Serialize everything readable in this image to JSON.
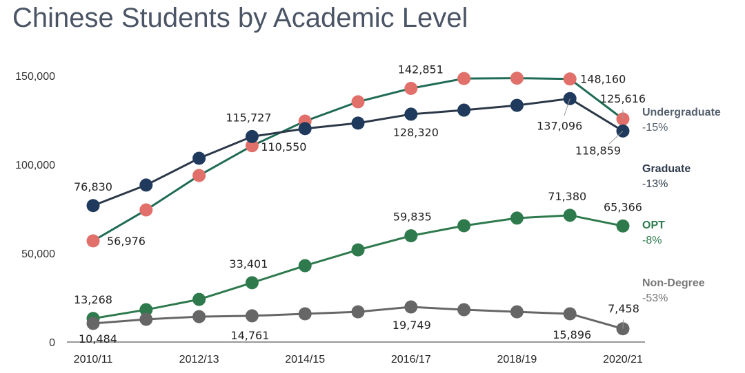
{
  "chart_data": {
    "type": "line",
    "title": "Chinese Students by Academic Level",
    "xlabel": "",
    "ylabel": "",
    "categories": [
      "2010/11",
      "2011/12",
      "2012/13",
      "2013/14",
      "2014/15",
      "2015/16",
      "2016/17",
      "2017/18",
      "2018/19",
      "2019/20",
      "2020/21"
    ],
    "x_tick_labels": [
      "2010/11",
      "2012/13",
      "2014/15",
      "2016/17",
      "2018/19",
      "2020/21"
    ],
    "y_ticks": [
      0,
      50000,
      100000,
      150000
    ],
    "y_tick_labels": [
      "0",
      "50,000",
      "100,000",
      "150,000"
    ],
    "ylim": [
      0,
      150000
    ],
    "grid": false,
    "legend_placement": "right",
    "series": [
      {
        "name": "Undergraduate",
        "change": "-15%",
        "line_color": "#1f6b55",
        "marker_color": "#e2706a",
        "label_color": "#56606e",
        "values": [
          56976,
          74400,
          93800,
          110550,
          124400,
          135300,
          142851,
          148400,
          148600,
          148160,
          125616
        ],
        "data_labels": {
          "0": "56,976",
          "3": "110,550",
          "6": "142,851",
          "9": "148,160",
          "10": "125,616"
        }
      },
      {
        "name": "Graduate",
        "change": "-13%",
        "line_color": "#2b3848",
        "marker_color": "#1f3a5c",
        "label_color": "#2e3b4c",
        "values": [
          76830,
          88400,
          103500,
          115727,
          120200,
          123300,
          128320,
          130600,
          133300,
          137096,
          118859
        ],
        "data_labels": {
          "0": "76,830",
          "3": "115,727",
          "6": "128,320",
          "9": "137,096",
          "10": "118,859"
        }
      },
      {
        "name": "OPT",
        "change": "-8%",
        "line_color": "#2e7a4d",
        "marker_color": "#2e7a4d",
        "label_color": "#2e7a4d",
        "values": [
          13268,
          18200,
          24000,
          33401,
          43000,
          51900,
          59835,
          65500,
          69800,
          71380,
          65366
        ],
        "data_labels": {
          "0": "13,268",
          "3": "33,401",
          "6": "59,835",
          "9": "71,380",
          "10": "65,366"
        }
      },
      {
        "name": "Non-Degree",
        "change": "-53%",
        "line_color": "#666666",
        "marker_color": "#666666",
        "label_color": "#777777",
        "values": [
          10484,
          12800,
          14300,
          14761,
          15900,
          17000,
          19749,
          18200,
          17000,
          15896,
          7458
        ],
        "data_labels": {
          "0": "10,484",
          "3": "14,761",
          "6": "19,749",
          "9": "15,896",
          "10": "7,458"
        }
      }
    ]
  }
}
